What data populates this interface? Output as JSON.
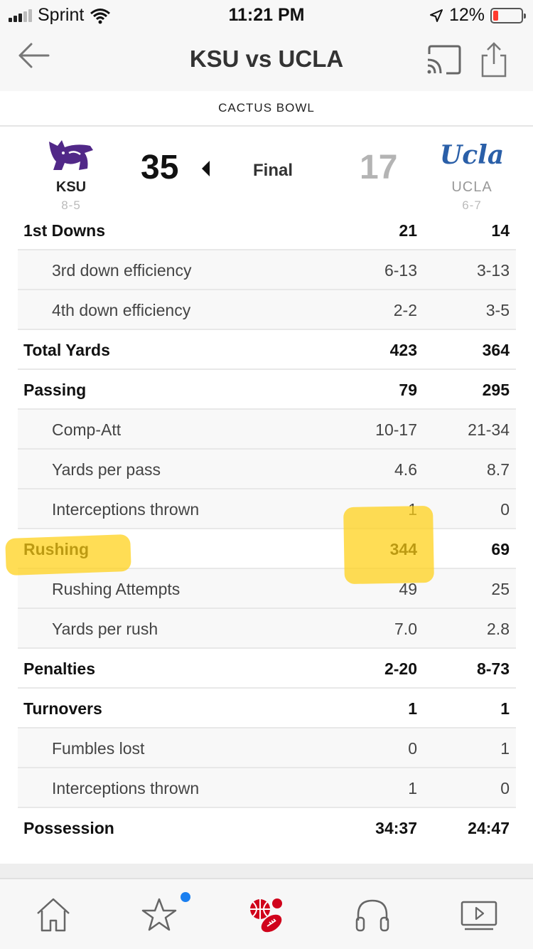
{
  "status_bar": {
    "carrier": "Sprint",
    "time": "11:21 PM",
    "battery_pct": "12%"
  },
  "nav": {
    "title": "KSU vs UCLA",
    "back_icon": "back-arrow-icon",
    "cast_icon": "cast-icon",
    "share_icon": "share-icon"
  },
  "bowl": "CACTUS BOWL",
  "game": {
    "home": {
      "abbr": "KSU",
      "record": "8-5",
      "score": "35",
      "logo": "wildcat-logo",
      "color": "#512888"
    },
    "away": {
      "abbr": "UCLA",
      "record": "6-7",
      "score": "17",
      "logo_text": "Ucla",
      "color": "#2a5fa8"
    },
    "status": "Final"
  },
  "stats": [
    {
      "label": "1st Downs",
      "ksu": "21",
      "ucla": "14",
      "type": "main"
    },
    {
      "label": "3rd down efficiency",
      "ksu": "6-13",
      "ucla": "3-13",
      "type": "sub"
    },
    {
      "label": "4th down efficiency",
      "ksu": "2-2",
      "ucla": "3-5",
      "type": "sub"
    },
    {
      "label": "Total Yards",
      "ksu": "423",
      "ucla": "364",
      "type": "main"
    },
    {
      "label": "Passing",
      "ksu": "79",
      "ucla": "295",
      "type": "main"
    },
    {
      "label": "Comp-Att",
      "ksu": "10-17",
      "ucla": "21-34",
      "type": "sub"
    },
    {
      "label": "Yards per pass",
      "ksu": "4.6",
      "ucla": "8.7",
      "type": "sub"
    },
    {
      "label": "Interceptions thrown",
      "ksu": "1",
      "ucla": "0",
      "type": "sub"
    },
    {
      "label": "Rushing",
      "ksu": "344",
      "ucla": "69",
      "type": "main"
    },
    {
      "label": "Rushing Attempts",
      "ksu": "49",
      "ucla": "25",
      "type": "sub"
    },
    {
      "label": "Yards per rush",
      "ksu": "7.0",
      "ucla": "2.8",
      "type": "sub"
    },
    {
      "label": "Penalties",
      "ksu": "2-20",
      "ucla": "8-73",
      "type": "main"
    },
    {
      "label": "Turnovers",
      "ksu": "1",
      "ucla": "1",
      "type": "main"
    },
    {
      "label": "Fumbles lost",
      "ksu": "0",
      "ucla": "1",
      "type": "sub"
    },
    {
      "label": "Interceptions thrown",
      "ksu": "1",
      "ucla": "0",
      "type": "sub"
    },
    {
      "label": "Possession",
      "ksu": "34:37",
      "ucla": "24:47",
      "type": "main"
    }
  ],
  "colors": {
    "highlight": "#ffd014",
    "accent_red": "#d0021b",
    "badge_blue": "#1a7ff0"
  },
  "tab_bar": {
    "tabs": [
      {
        "icon": "home-icon",
        "active": false
      },
      {
        "icon": "star-icon",
        "active": false,
        "badge": true
      },
      {
        "icon": "sports-balls-icon",
        "active": true
      },
      {
        "icon": "headphones-icon",
        "active": false
      },
      {
        "icon": "video-icon",
        "active": false
      }
    ]
  }
}
